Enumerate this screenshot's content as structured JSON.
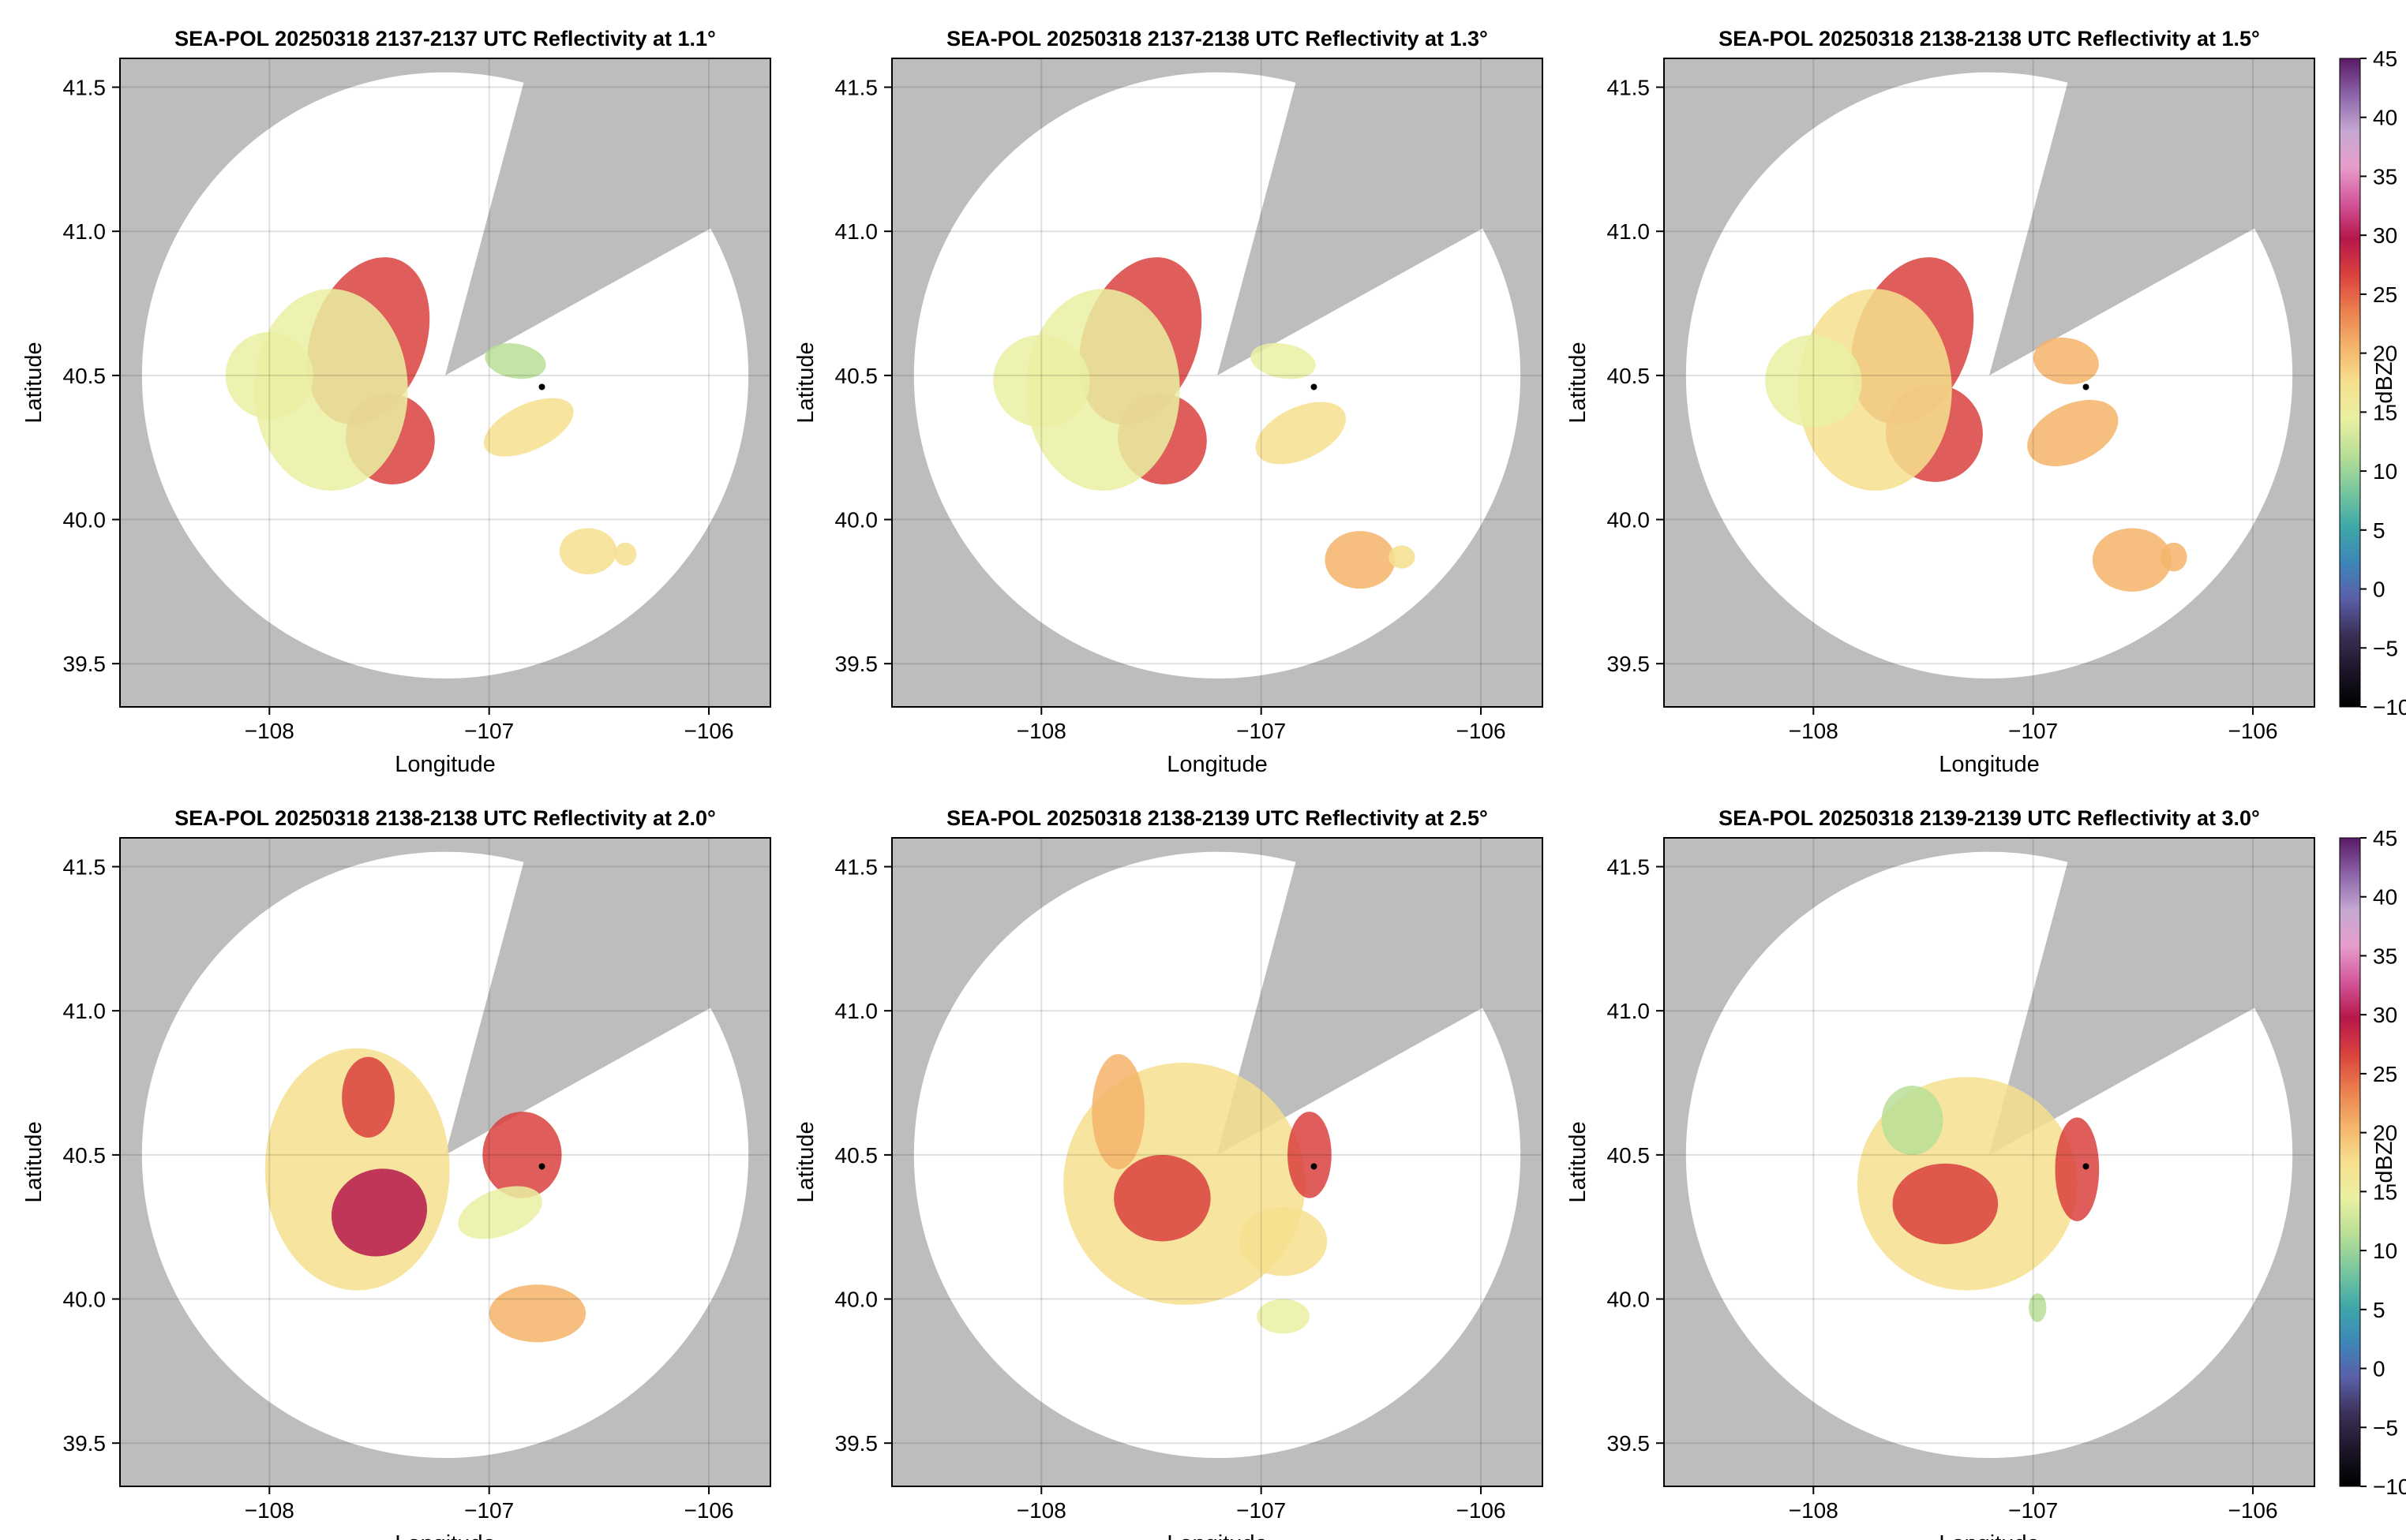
{
  "figure": {
    "colorbar_label": "dBZ",
    "colorbar_ticks": [
      "−10",
      "−5",
      "0",
      "5",
      "10",
      "15",
      "20",
      "25",
      "30",
      "35",
      "40",
      "45"
    ],
    "colorscale": {
      "name": "spectral-like reflectivity",
      "range": [
        -10,
        45
      ],
      "stops": [
        "#000000",
        "#1c1528",
        "#3b3057",
        "#5a5fa8",
        "#3d86b8",
        "#3fa8a8",
        "#79c79e",
        "#b9df96",
        "#eaf0a2",
        "#f6e08e",
        "#f4b46a",
        "#eb7f4e",
        "#d9413d",
        "#b6174b",
        "#d3569b",
        "#e79ecb",
        "#c4a8d2",
        "#8b63a8",
        "#5a1a66"
      ]
    },
    "background_colors": {
      "no_coverage": "#bdbdbd",
      "scan_area": "#ffffff",
      "radar_marker": "#000000"
    }
  },
  "chart_data": [
    {
      "type": "heatmap",
      "title": "SEA-POL 20250318 2137-2137 UTC Reflectivity at 1.1°",
      "xlabel": "Longitude",
      "ylabel": "Latitude",
      "xlim": [
        -108.68,
        -105.72
      ],
      "ylim": [
        39.35,
        41.6
      ],
      "xticks": [
        "−108",
        "−107",
        "−106"
      ],
      "yticks": [
        "39.5",
        "40.0",
        "40.5",
        "41.0",
        "41.5"
      ],
      "grid": true,
      "radar_location": [
        -107.2,
        40.5
      ],
      "marker": [
        -106.76,
        40.46
      ],
      "echoes": [
        {
          "lon": -107.55,
          "lat": 40.62,
          "rx": 0.26,
          "ry": 0.3,
          "dbz": 27,
          "angle": 20
        },
        {
          "lon": -107.45,
          "lat": 40.28,
          "rx": 0.2,
          "ry": 0.16,
          "dbz": 28,
          "angle": -30
        },
        {
          "lon": -107.72,
          "lat": 40.45,
          "rx": 0.35,
          "ry": 0.35,
          "dbz": 15,
          "angle": 0
        },
        {
          "lon": -108.0,
          "lat": 40.5,
          "rx": 0.2,
          "ry": 0.15,
          "dbz": 14,
          "angle": 10
        },
        {
          "lon": -106.82,
          "lat": 40.32,
          "rx": 0.22,
          "ry": 0.08,
          "dbz": 16,
          "angle": -25
        },
        {
          "lon": -106.88,
          "lat": 40.55,
          "rx": 0.14,
          "ry": 0.06,
          "dbz": 12,
          "angle": 10
        },
        {
          "lon": -106.55,
          "lat": 39.89,
          "rx": 0.13,
          "ry": 0.08,
          "dbz": 17,
          "angle": 0
        },
        {
          "lon": -106.38,
          "lat": 39.88,
          "rx": 0.05,
          "ry": 0.04,
          "dbz": 18,
          "angle": 0
        }
      ]
    },
    {
      "type": "heatmap",
      "title": "SEA-POL 20250318 2137-2138 UTC Reflectivity at 1.3°",
      "xlabel": "Longitude",
      "ylabel": "Latitude",
      "xlim": [
        -108.68,
        -105.72
      ],
      "ylim": [
        39.35,
        41.6
      ],
      "xticks": [
        "−108",
        "−107",
        "−106"
      ],
      "yticks": [
        "39.5",
        "40.0",
        "40.5",
        "41.0",
        "41.5"
      ],
      "grid": true,
      "radar_location": [
        -107.2,
        40.5
      ],
      "marker": [
        -106.76,
        40.46
      ],
      "echoes": [
        {
          "lon": -107.55,
          "lat": 40.62,
          "rx": 0.26,
          "ry": 0.3,
          "dbz": 28,
          "angle": 20
        },
        {
          "lon": -107.45,
          "lat": 40.28,
          "rx": 0.2,
          "ry": 0.16,
          "dbz": 27,
          "angle": -30
        },
        {
          "lon": -107.72,
          "lat": 40.45,
          "rx": 0.35,
          "ry": 0.35,
          "dbz": 15,
          "angle": 0
        },
        {
          "lon": -108.0,
          "lat": 40.48,
          "rx": 0.22,
          "ry": 0.16,
          "dbz": 14,
          "angle": 10
        },
        {
          "lon": -106.82,
          "lat": 40.3,
          "rx": 0.22,
          "ry": 0.09,
          "dbz": 18,
          "angle": -25
        },
        {
          "lon": -106.9,
          "lat": 40.55,
          "rx": 0.15,
          "ry": 0.06,
          "dbz": 14,
          "angle": 10
        },
        {
          "lon": -106.55,
          "lat": 39.86,
          "rx": 0.16,
          "ry": 0.1,
          "dbz": 20,
          "angle": 0
        },
        {
          "lon": -106.36,
          "lat": 39.87,
          "rx": 0.06,
          "ry": 0.04,
          "dbz": 19,
          "angle": 0
        }
      ]
    },
    {
      "type": "heatmap",
      "title": "SEA-POL 20250318 2138-2138 UTC Reflectivity at 1.5°",
      "xlabel": "Longitude",
      "ylabel": "Latitude",
      "xlim": [
        -108.68,
        -105.72
      ],
      "ylim": [
        39.35,
        41.6
      ],
      "xticks": [
        "−108",
        "−107",
        "−106"
      ],
      "yticks": [
        "39.5",
        "40.0",
        "40.5",
        "41.0",
        "41.5"
      ],
      "grid": true,
      "radar_location": [
        -107.2,
        40.5
      ],
      "marker": [
        -106.76,
        40.46
      ],
      "echoes": [
        {
          "lon": -107.55,
          "lat": 40.62,
          "rx": 0.26,
          "ry": 0.3,
          "dbz": 28,
          "angle": 20
        },
        {
          "lon": -107.45,
          "lat": 40.3,
          "rx": 0.22,
          "ry": 0.17,
          "dbz": 28,
          "angle": -30
        },
        {
          "lon": -107.72,
          "lat": 40.45,
          "rx": 0.35,
          "ry": 0.35,
          "dbz": 16,
          "angle": 0
        },
        {
          "lon": -108.0,
          "lat": 40.48,
          "rx": 0.22,
          "ry": 0.16,
          "dbz": 15,
          "angle": 10
        },
        {
          "lon": -106.82,
          "lat": 40.3,
          "rx": 0.22,
          "ry": 0.1,
          "dbz": 20,
          "angle": -25
        },
        {
          "lon": -106.85,
          "lat": 40.55,
          "rx": 0.15,
          "ry": 0.08,
          "dbz": 22,
          "angle": 10
        },
        {
          "lon": -106.55,
          "lat": 39.86,
          "rx": 0.18,
          "ry": 0.11,
          "dbz": 22,
          "angle": 0
        },
        {
          "lon": -106.36,
          "lat": 39.87,
          "rx": 0.06,
          "ry": 0.05,
          "dbz": 20,
          "angle": 0
        }
      ]
    },
    {
      "type": "heatmap",
      "title": "SEA-POL 20250318 2138-2138 UTC Reflectivity at 2.0°",
      "xlabel": "Longitude",
      "ylabel": "Latitude",
      "xlim": [
        -108.68,
        -105.72
      ],
      "ylim": [
        39.35,
        41.6
      ],
      "xticks": [
        "−108",
        "−107",
        "−106"
      ],
      "yticks": [
        "39.5",
        "40.0",
        "40.5",
        "41.0",
        "41.5"
      ],
      "grid": true,
      "radar_location": [
        -107.2,
        40.5
      ],
      "marker": [
        -106.76,
        40.46
      ],
      "echoes": [
        {
          "lon": -107.6,
          "lat": 40.45,
          "rx": 0.42,
          "ry": 0.42,
          "dbz": 17,
          "angle": 0
        },
        {
          "lon": -107.5,
          "lat": 40.3,
          "rx": 0.22,
          "ry": 0.15,
          "dbz": 29,
          "angle": -20
        },
        {
          "lon": -107.55,
          "lat": 40.7,
          "rx": 0.12,
          "ry": 0.14,
          "dbz": 27,
          "angle": 0
        },
        {
          "lon": -106.85,
          "lat": 40.5,
          "rx": 0.18,
          "ry": 0.15,
          "dbz": 26,
          "angle": 0
        },
        {
          "lon": -106.95,
          "lat": 40.3,
          "rx": 0.2,
          "ry": 0.08,
          "dbz": 15,
          "angle": -20
        },
        {
          "lon": -106.78,
          "lat": 39.95,
          "rx": 0.22,
          "ry": 0.1,
          "dbz": 20,
          "angle": 0
        }
      ]
    },
    {
      "type": "heatmap",
      "title": "SEA-POL 20250318 2138-2139 UTC Reflectivity at 2.5°",
      "xlabel": "Longitude",
      "ylabel": "Latitude",
      "xlim": [
        -108.68,
        -105.72
      ],
      "ylim": [
        39.35,
        41.6
      ],
      "xticks": [
        "−108",
        "−107",
        "−106"
      ],
      "yticks": [
        "39.5",
        "40.0",
        "40.5",
        "41.0",
        "41.5"
      ],
      "grid": true,
      "radar_location": [
        -107.2,
        40.5
      ],
      "marker": [
        -106.76,
        40.46
      ],
      "echoes": [
        {
          "lon": -107.35,
          "lat": 40.4,
          "rx": 0.55,
          "ry": 0.42,
          "dbz": 16,
          "angle": 0
        },
        {
          "lon": -107.45,
          "lat": 40.35,
          "rx": 0.22,
          "ry": 0.15,
          "dbz": 28,
          "angle": 0
        },
        {
          "lon": -107.65,
          "lat": 40.65,
          "rx": 0.12,
          "ry": 0.2,
          "dbz": 22,
          "angle": 0
        },
        {
          "lon": -106.78,
          "lat": 40.5,
          "rx": 0.1,
          "ry": 0.15,
          "dbz": 28,
          "angle": 0
        },
        {
          "lon": -106.9,
          "lat": 40.2,
          "rx": 0.2,
          "ry": 0.12,
          "dbz": 18,
          "angle": 0
        },
        {
          "lon": -106.9,
          "lat": 39.94,
          "rx": 0.12,
          "ry": 0.06,
          "dbz": 15,
          "angle": 0
        }
      ]
    },
    {
      "type": "heatmap",
      "title": "SEA-POL 20250318 2139-2139 UTC Reflectivity at 3.0°",
      "xlabel": "Longitude",
      "ylabel": "Latitude",
      "xlim": [
        -108.68,
        -105.72
      ],
      "ylim": [
        39.35,
        41.6
      ],
      "xticks": [
        "−108",
        "−107",
        "−106"
      ],
      "yticks": [
        "39.5",
        "40.0",
        "40.5",
        "41.0",
        "41.5"
      ],
      "grid": true,
      "radar_location": [
        -107.2,
        40.5
      ],
      "marker": [
        -106.76,
        40.46
      ],
      "echoes": [
        {
          "lon": -107.3,
          "lat": 40.4,
          "rx": 0.5,
          "ry": 0.37,
          "dbz": 17,
          "angle": 0
        },
        {
          "lon": -107.4,
          "lat": 40.33,
          "rx": 0.24,
          "ry": 0.14,
          "dbz": 27,
          "angle": 0
        },
        {
          "lon": -107.55,
          "lat": 40.62,
          "rx": 0.14,
          "ry": 0.12,
          "dbz": 10,
          "angle": 0
        },
        {
          "lon": -106.8,
          "lat": 40.45,
          "rx": 0.1,
          "ry": 0.18,
          "dbz": 26,
          "angle": 0
        },
        {
          "lon": -106.98,
          "lat": 39.97,
          "rx": 0.04,
          "ry": 0.05,
          "dbz": 12,
          "angle": 0
        }
      ]
    }
  ]
}
